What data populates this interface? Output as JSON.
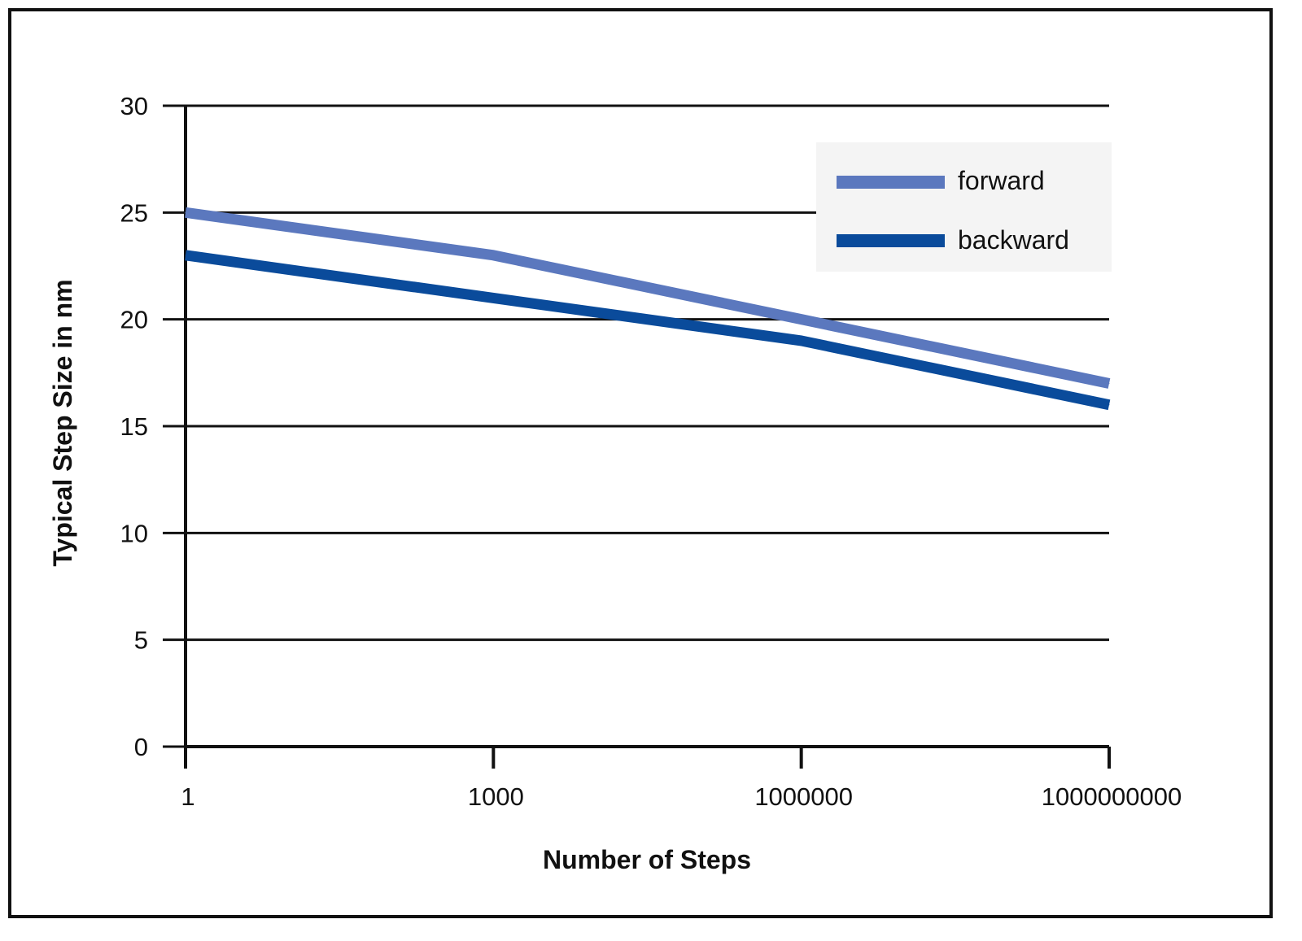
{
  "chart_data": {
    "type": "line",
    "x_scale": "log",
    "categories": [
      "1",
      "1000",
      "1000000",
      "1000000000"
    ],
    "x": [
      1,
      1000,
      1000000,
      1000000000
    ],
    "series": [
      {
        "name": "forward",
        "values": [
          25,
          23,
          20,
          17
        ],
        "color": "#5b78be"
      },
      {
        "name": "backward",
        "values": [
          23,
          21,
          19,
          16
        ],
        "color": "#0a4b9b"
      }
    ],
    "xlabel": "Number of Steps",
    "ylabel": "Typical Step Size in nm",
    "ylim": [
      0,
      30
    ],
    "yticks": [
      0,
      5,
      10,
      15,
      20,
      25,
      30
    ],
    "grid": true,
    "legend_position": "top-right"
  }
}
